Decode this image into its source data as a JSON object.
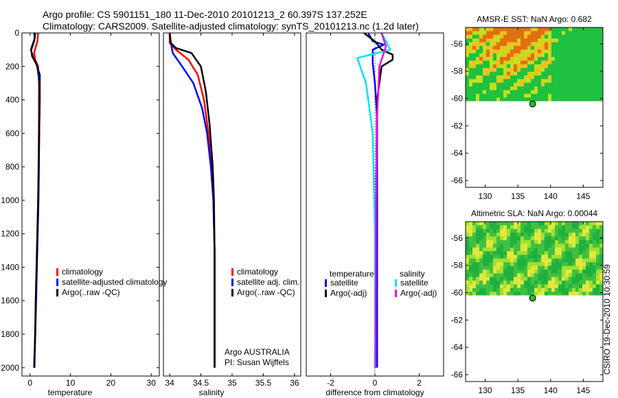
{
  "header": {
    "line1": "Argo profile: CS 5901151_180 11-Dec-2010 20101213_2 60.397S 137.252E",
    "line2": "Climatology: CARS2009. Satellite-adjusted climatology: synTS_20101213.nc (1.2d later)"
  },
  "side_label": "CSIRO 19-Dec-2010 10:30:59",
  "chart_data": [
    {
      "type": "line",
      "id": "temperature",
      "xlabel": "temperature",
      "xlim": [
        -2,
        32
      ],
      "ylim": [
        2050,
        0
      ],
      "xticks": [
        0,
        10,
        20,
        30
      ],
      "xtick_labels": [
        "0",
        "10",
        "20",
        "30"
      ],
      "yticks": [
        0,
        200,
        400,
        600,
        800,
        1000,
        1200,
        1400,
        1600,
        1800,
        2000
      ],
      "ytick_labels": [
        "0",
        "200",
        "400",
        "600",
        "800",
        "1000",
        "1200",
        "1400",
        "1600",
        "1800",
        "2000"
      ],
      "legend": [
        "climatology",
        "satellite-adjusted climatology",
        "Argo(..raw -QC)"
      ],
      "series": [
        {
          "name": "climatology",
          "color": "#ff0000",
          "x": [
            2.0,
            1.8,
            1.0,
            1.3,
            2.0,
            2.2,
            2.2,
            2.1,
            2.0,
            1.8,
            1.5,
            1.3,
            1.0
          ],
          "y": [
            0,
            50,
            120,
            160,
            200,
            300,
            500,
            800,
            1000,
            1200,
            1500,
            1800,
            2000
          ]
        },
        {
          "name": "satellite-adjusted climatology",
          "color": "#0000ff",
          "x": [
            1.0,
            1.2,
            0.2,
            0.8,
            1.8,
            2.3,
            2.3,
            2.2,
            2.1,
            1.9,
            1.6,
            1.3,
            1.0
          ],
          "y": [
            0,
            30,
            100,
            150,
            200,
            300,
            500,
            800,
            1000,
            1200,
            1500,
            1800,
            2000
          ]
        },
        {
          "name": "Argo(..raw -QC)",
          "color": "#000000",
          "x": [
            1.3,
            1.0,
            0.3,
            0.5,
            1.5,
            2.4,
            2.4,
            2.2,
            2.0,
            1.7,
            1.4,
            1.1
          ],
          "y": [
            0,
            50,
            100,
            140,
            180,
            250,
            400,
            700,
            1000,
            1300,
            1600,
            2000
          ]
        }
      ]
    },
    {
      "type": "line",
      "id": "salinity",
      "xlabel": "salinity",
      "xlim": [
        33.9,
        36.1
      ],
      "ylim": [
        2050,
        0
      ],
      "xticks": [
        34,
        34.5,
        35,
        35.5,
        36
      ],
      "xtick_labels": [
        "34",
        "34.5",
        "35",
        "35.5",
        "36"
      ],
      "legend": [
        "climatology",
        "satellite adj. clim.",
        "Argo(..raw -QC)"
      ],
      "annotation": [
        "Argo AUSTRALIA",
        "PI: Susan Wijffels"
      ],
      "series": [
        {
          "name": "climatology",
          "color": "#ff0000",
          "x": [
            34.0,
            34.0,
            34.1,
            34.3,
            34.45,
            34.55,
            34.62,
            34.67,
            34.7,
            34.72,
            34.72,
            34.72
          ],
          "y": [
            0,
            60,
            100,
            160,
            250,
            400,
            600,
            800,
            1000,
            1300,
            1600,
            2000
          ]
        },
        {
          "name": "satellite adj. clim.",
          "color": "#0000ff",
          "x": [
            34.0,
            34.02,
            34.05,
            34.2,
            34.38,
            34.52,
            34.6,
            34.66,
            34.7,
            34.72,
            34.72,
            34.72
          ],
          "y": [
            0,
            60,
            120,
            200,
            300,
            450,
            600,
            800,
            1000,
            1300,
            1600,
            2000
          ]
        },
        {
          "name": "Argo(..raw -QC)",
          "color": "#000000",
          "x": [
            34.0,
            34.02,
            34.1,
            34.35,
            34.5,
            34.58,
            34.64,
            34.69,
            34.71,
            34.72,
            34.72,
            34.72
          ],
          "y": [
            0,
            60,
            90,
            120,
            200,
            350,
            550,
            800,
            1000,
            1300,
            1600,
            2000
          ]
        }
      ]
    },
    {
      "type": "line",
      "id": "difference",
      "xlabel": "difference from climatology",
      "xlim": [
        -3.1,
        3.1
      ],
      "ylim": [
        2050,
        0
      ],
      "xticks": [
        -2,
        0,
        2
      ],
      "xtick_labels": [
        "-2",
        "0",
        "2"
      ],
      "legend_headers": [
        "temperature",
        "salinity"
      ],
      "legend": [
        "satellite",
        "Argo(-adj)",
        "satellite",
        "Argo(-adj)"
      ],
      "series": [
        {
          "name": "temperature satellite",
          "color": "#0000ff",
          "x": [
            -0.3,
            -0.1,
            0.4,
            -0.1,
            -0.1,
            0.0,
            0.1,
            0.1,
            0.1,
            0.1
          ],
          "y": [
            0,
            50,
            70,
            100,
            180,
            300,
            500,
            1000,
            1500,
            2000
          ]
        },
        {
          "name": "temperature Argo(-adj)",
          "color": "#000000",
          "x": [
            -0.5,
            0.0,
            0.3,
            0.8,
            0.8,
            0.3,
            0.1,
            0.05,
            0.0
          ],
          "y": [
            0,
            50,
            100,
            130,
            160,
            200,
            400,
            1000,
            2000
          ]
        },
        {
          "name": "salinity satellite",
          "color": "#00e5ee",
          "x": [
            0.3,
            0.7,
            -0.8,
            -0.4,
            -0.1,
            0.0,
            0.0
          ],
          "y": [
            0,
            100,
            150,
            300,
            600,
            1200,
            2000
          ]
        },
        {
          "name": "salinity Argo(-adj)",
          "color": "#ee00ee",
          "x": [
            0.3,
            0.5,
            0.2,
            0.1,
            0.05,
            0.03
          ],
          "y": [
            0,
            80,
            200,
            500,
            1000,
            2000
          ]
        }
      ]
    },
    {
      "type": "heatmap",
      "id": "sst",
      "title": "AMSR-E SST: NaN Argo: 0.682",
      "xlim": [
        127,
        148
      ],
      "ylim": [
        -66.5,
        -54.8
      ],
      "xticks": [
        130,
        135,
        140,
        145
      ],
      "xtick_labels": [
        "130",
        "135",
        "140",
        "145"
      ],
      "yticks": [
        -56,
        -58,
        -60,
        -62,
        -64,
        -66
      ],
      "ytick_labels": [
        "-56",
        "-58",
        "-60",
        "-62",
        "-64",
        "-66"
      ],
      "data_extent": {
        "lat_min": -60.2,
        "lat_max": -54.8
      },
      "marker": {
        "lon": 137.252,
        "lat": -60.397
      },
      "palette": [
        "#e07010",
        "#f0c020",
        "#c0e020",
        "#20c040"
      ]
    },
    {
      "type": "heatmap",
      "id": "sla",
      "title": "Altimetric SLA: NaN Argo: 0.00044",
      "xlim": [
        127,
        148
      ],
      "ylim": [
        -66.5,
        -54.8
      ],
      "xticks": [
        130,
        135,
        140,
        145
      ],
      "xtick_labels": [
        "130",
        "135",
        "140",
        "145"
      ],
      "yticks": [
        -56,
        -58,
        -60,
        -62,
        -64,
        -66
      ],
      "ytick_labels": [
        "-56",
        "-58",
        "-60",
        "-62",
        "-64",
        "-66"
      ],
      "data_extent": {
        "lat_min": -60.2,
        "lat_max": -54.8
      },
      "marker": {
        "lon": 137.252,
        "lat": -60.397
      },
      "palette": [
        "#e0e840",
        "#a0e030",
        "#40c040",
        "#20b040"
      ]
    }
  ]
}
